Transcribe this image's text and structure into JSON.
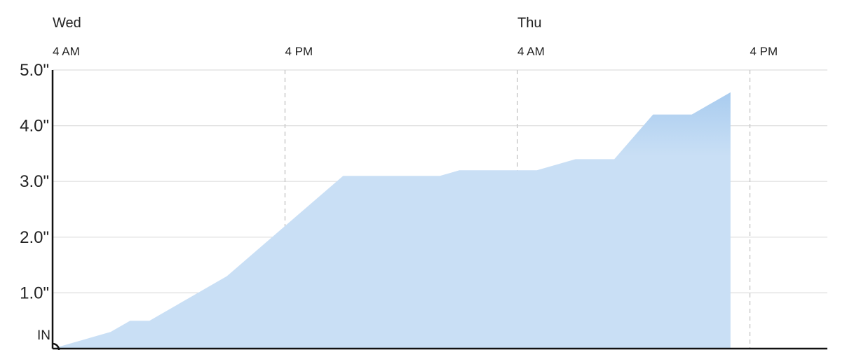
{
  "chart_data": {
    "type": "area",
    "title": "",
    "xlabel": "",
    "ylabel": "IN",
    "y_unit_label": "IN",
    "day_labels": [
      {
        "label": "Wed",
        "t": 4
      },
      {
        "label": "Thu",
        "t": 28
      }
    ],
    "x_ticks": [
      {
        "label": "4 AM",
        "t": 4
      },
      {
        "label": "4 PM",
        "t": 16
      },
      {
        "label": "4 AM",
        "t": 28
      },
      {
        "label": "4 PM",
        "t": 40
      }
    ],
    "y_ticks": [
      {
        "label": "1.0\"",
        "value": 1.0
      },
      {
        "label": "2.0\"",
        "value": 2.0
      },
      {
        "label": "3.0\"",
        "value": 3.0
      },
      {
        "label": "4.0\"",
        "value": 4.0
      },
      {
        "label": "5.0\"",
        "value": 5.0
      }
    ],
    "x_range_hours": [
      4,
      44
    ],
    "ylim": [
      0,
      5
    ],
    "grid": true,
    "fill_color": "#c9dff5",
    "fill_top_color": "#a9ccef",
    "series": [
      {
        "x": [
          4,
          7,
          8,
          9,
          11,
          13,
          19,
          24,
          25,
          28,
          29,
          31,
          33,
          35,
          37,
          39
        ],
        "values": [
          0.0,
          0.3,
          0.5,
          0.5,
          0.9,
          1.3,
          3.1,
          3.1,
          3.2,
          3.2,
          3.2,
          3.4,
          3.4,
          4.2,
          4.2,
          4.6
        ]
      }
    ]
  }
}
